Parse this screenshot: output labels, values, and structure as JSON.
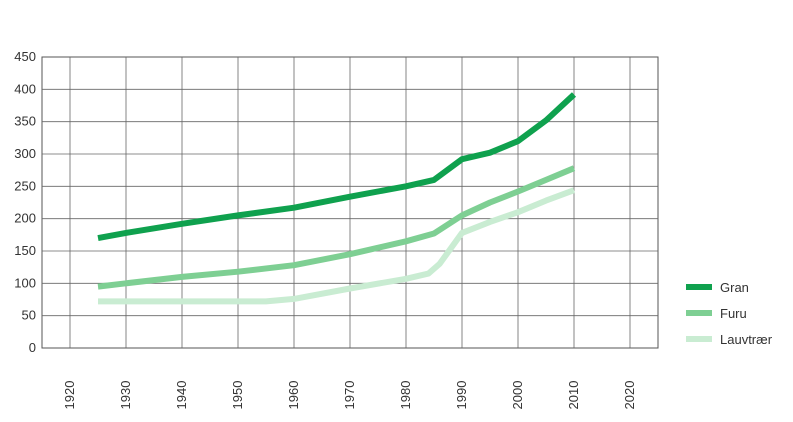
{
  "chart_data": {
    "type": "line",
    "title": "",
    "xlabel": "",
    "ylabel": "",
    "xlim": [
      1915,
      2025
    ],
    "ylim": [
      0,
      450
    ],
    "x_ticks": [
      1920,
      1930,
      1940,
      1950,
      1960,
      1970,
      1980,
      1990,
      2000,
      2010,
      2020
    ],
    "y_ticks": [
      0,
      50,
      100,
      150,
      200,
      250,
      300,
      350,
      400,
      450
    ],
    "grid": true,
    "legend_position": "right",
    "series": [
      {
        "name": "Gran",
        "color": "#0fa14e",
        "x": [
          1925,
          1930,
          1940,
          1950,
          1960,
          1970,
          1980,
          1985,
          1990,
          1995,
          2000,
          2005,
          2010
        ],
        "y": [
          170,
          178,
          192,
          205,
          217,
          234,
          250,
          260,
          292,
          302,
          320,
          352,
          392
        ]
      },
      {
        "name": "Furu",
        "color": "#7ecf93",
        "x": [
          1925,
          1930,
          1940,
          1950,
          1960,
          1970,
          1980,
          1985,
          1990,
          1995,
          2000,
          2005,
          2010
        ],
        "y": [
          95,
          100,
          110,
          118,
          128,
          145,
          165,
          177,
          205,
          225,
          242,
          260,
          278
        ]
      },
      {
        "name": "Lauvtrær",
        "color": "#c9ecd2",
        "x": [
          1925,
          1930,
          1940,
          1950,
          1955,
          1960,
          1970,
          1980,
          1984,
          1986,
          1990,
          1995,
          2000,
          2005,
          2010
        ],
        "y": [
          72,
          72,
          72,
          72,
          72,
          76,
          92,
          107,
          115,
          130,
          178,
          195,
          210,
          228,
          244
        ]
      }
    ]
  }
}
